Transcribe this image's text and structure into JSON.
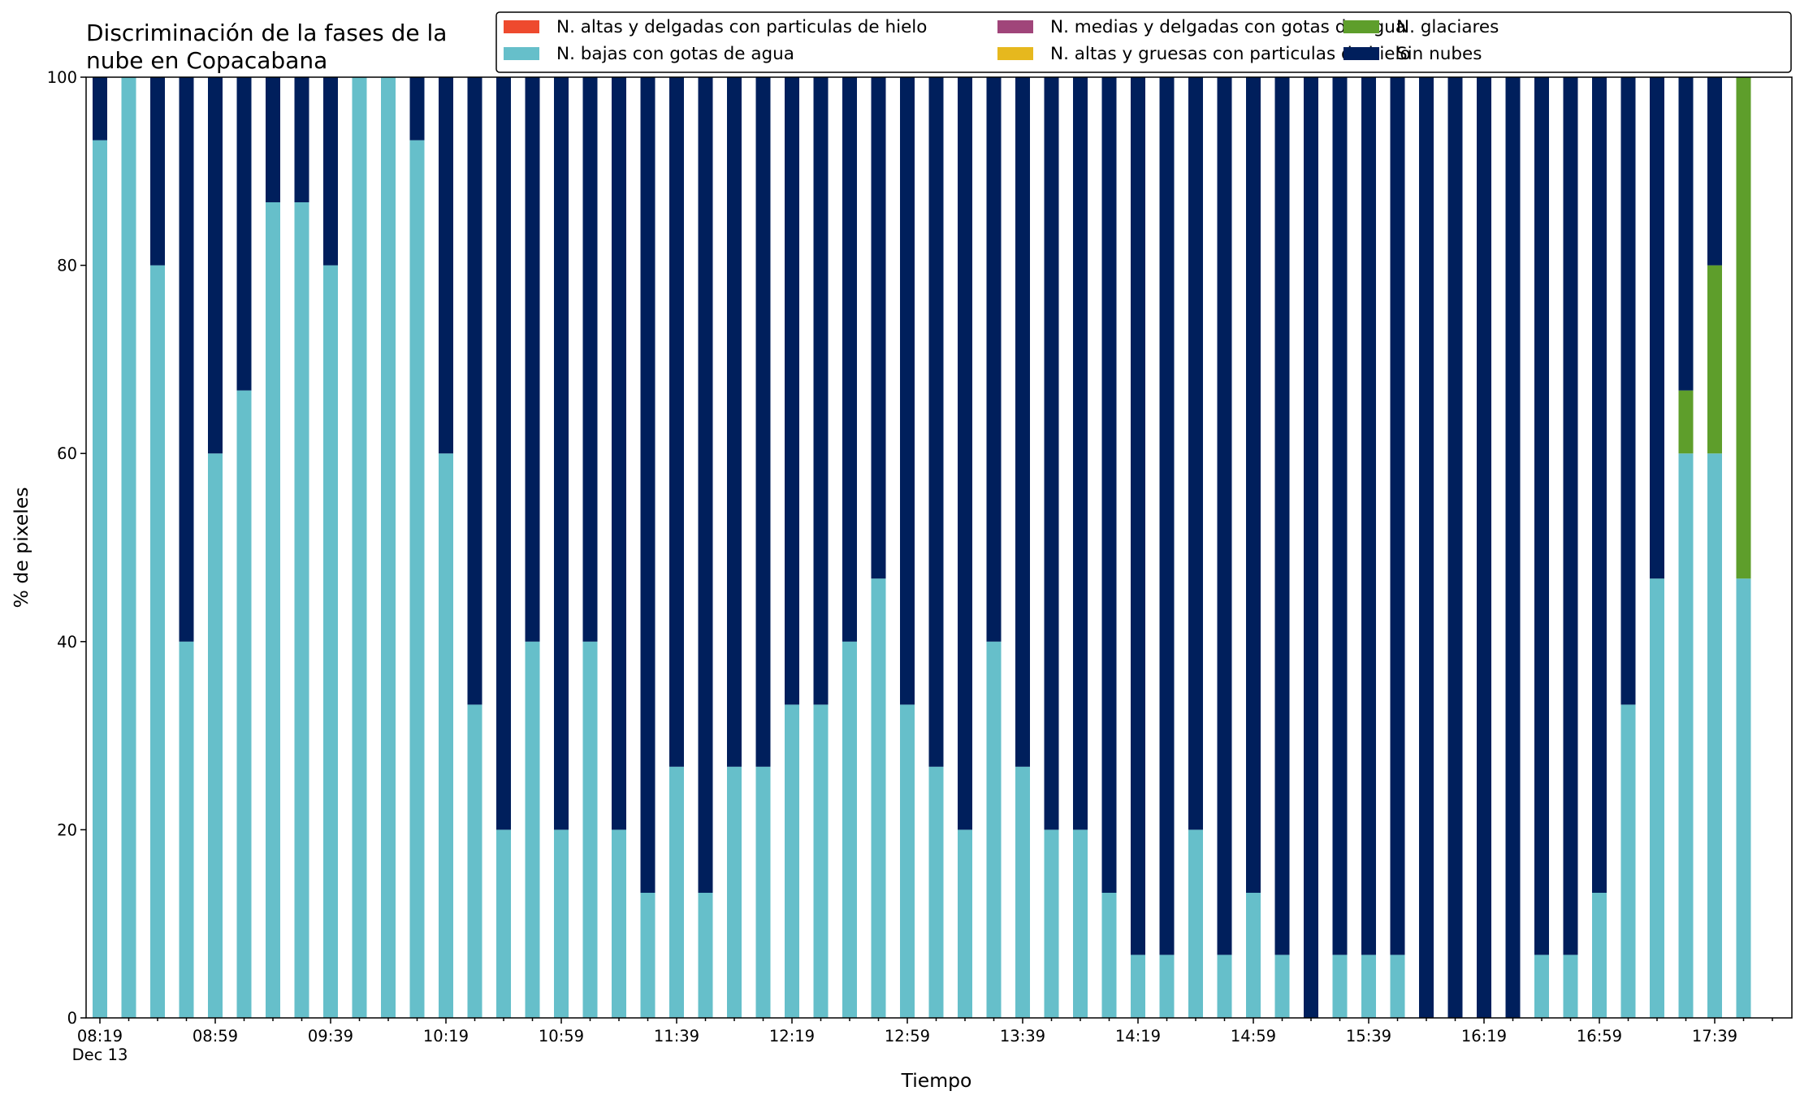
{
  "chart_data": {
    "type": "bar",
    "stacked": true,
    "title": [
      "Discriminación de la fases de la",
      "nube en Copacabana"
    ],
    "xlabel": "Tiempo",
    "ylabel": "% de pixeles",
    "ylim": [
      0,
      100
    ],
    "yticks": [
      0,
      20,
      40,
      60,
      80,
      100
    ],
    "date_label": "Dec 13",
    "grid": false,
    "legend_position": "upper-right",
    "categories": [
      "08:19",
      "08:29",
      "08:39",
      "08:49",
      "08:59",
      "09:09",
      "09:19",
      "09:29",
      "09:39",
      "09:49",
      "09:59",
      "10:09",
      "10:19",
      "10:29",
      "10:39",
      "10:49",
      "10:59",
      "11:09",
      "11:19",
      "11:29",
      "11:39",
      "11:49",
      "11:59",
      "12:09",
      "12:19",
      "12:29",
      "12:39",
      "12:49",
      "12:59",
      "13:09",
      "13:19",
      "13:29",
      "13:39",
      "13:49",
      "13:59",
      "14:09",
      "14:19",
      "14:29",
      "14:39",
      "14:49",
      "14:59",
      "15:09",
      "15:19",
      "15:29",
      "15:39",
      "15:49",
      "15:59",
      "16:09",
      "16:19",
      "16:29",
      "16:39",
      "16:49",
      "16:59",
      "17:09",
      "17:19",
      "17:29",
      "17:39",
      "17:49"
    ],
    "x_tick_labels": [
      "08:19",
      "08:59",
      "09:39",
      "10:19",
      "10:59",
      "11:39",
      "12:19",
      "12:59",
      "13:39",
      "14:19",
      "14:59",
      "15:39",
      "16:19",
      "16:59",
      "17:39"
    ],
    "series": [
      {
        "name": "N. altas y delgadas con particulas de hielo",
        "color": "#ee4a2e",
        "values": [
          0,
          0,
          0,
          0,
          0,
          0,
          0,
          0,
          0,
          0,
          0,
          0,
          0,
          0,
          0,
          0,
          0,
          0,
          0,
          0,
          0,
          0,
          0,
          0,
          0,
          0,
          0,
          0,
          0,
          0,
          0,
          0,
          0,
          0,
          0,
          0,
          0,
          0,
          0,
          0,
          0,
          0,
          0,
          0,
          0,
          0,
          0,
          0,
          0,
          0,
          0,
          0,
          0,
          0,
          0,
          0,
          0,
          0
        ]
      },
      {
        "name": "N. altas y gruesas con particulas de hielo",
        "color": "#e6b81e",
        "values": [
          0,
          0,
          0,
          0,
          0,
          0,
          0,
          0,
          0,
          0,
          0,
          0,
          0,
          0,
          0,
          0,
          0,
          0,
          0,
          0,
          0,
          0,
          0,
          0,
          0,
          0,
          0,
          0,
          0,
          0,
          0,
          0,
          0,
          0,
          0,
          0,
          0,
          0,
          0,
          0,
          0,
          0,
          0,
          0,
          0,
          0,
          0,
          0,
          0,
          0,
          0,
          0,
          0,
          0,
          0,
          0,
          0,
          0
        ]
      },
      {
        "name": "N. bajas con gotas de agua",
        "color": "#66bfca",
        "values": [
          93.3,
          100,
          80,
          40,
          60,
          66.7,
          86.7,
          86.7,
          80,
          100,
          100,
          93.3,
          60,
          33.3,
          20,
          40,
          20,
          40,
          20,
          13.3,
          26.7,
          13.3,
          26.7,
          26.7,
          33.3,
          33.3,
          40,
          46.7,
          33.3,
          26.7,
          20,
          40,
          26.7,
          20,
          20,
          13.3,
          6.7,
          6.7,
          20,
          6.7,
          13.3,
          6.7,
          0,
          6.7,
          6.7,
          6.7,
          0,
          0,
          0,
          0,
          6.7,
          6.7,
          13.3,
          33.3,
          46.7,
          60,
          60,
          46.7
        ]
      },
      {
        "name": "N. glaciares",
        "color": "#5e9e2b",
        "values": [
          0,
          0,
          0,
          0,
          0,
          0,
          0,
          0,
          0,
          0,
          0,
          0,
          0,
          0,
          0,
          0,
          0,
          0,
          0,
          0,
          0,
          0,
          0,
          0,
          0,
          0,
          0,
          0,
          0,
          0,
          0,
          0,
          0,
          0,
          0,
          0,
          0,
          0,
          0,
          0,
          0,
          0,
          0,
          0,
          0,
          0,
          0,
          0,
          0,
          0,
          0,
          0,
          0,
          0,
          0,
          6.7,
          20,
          53.3
        ]
      },
      {
        "name": "N. medias y delgadas con gotas de agua",
        "color": "#a0457a",
        "values": [
          0,
          0,
          0,
          0,
          0,
          0,
          0,
          0,
          0,
          0,
          0,
          0,
          0,
          0,
          0,
          0,
          0,
          0,
          0,
          0,
          0,
          0,
          0,
          0,
          0,
          0,
          0,
          0,
          0,
          0,
          0,
          0,
          0,
          0,
          0,
          0,
          0,
          0,
          0,
          0,
          0,
          0,
          0,
          0,
          0,
          0,
          0,
          0,
          0,
          0,
          0,
          0,
          0,
          0,
          0,
          0,
          0,
          0
        ]
      },
      {
        "name": "Sin nubes",
        "color": "#001f5c",
        "values": [
          6.7,
          0,
          20,
          60,
          40,
          33.3,
          13.3,
          13.3,
          20,
          0,
          0,
          6.7,
          40,
          66.7,
          80,
          60,
          80,
          60,
          80,
          86.7,
          73.3,
          86.7,
          73.3,
          73.3,
          66.7,
          66.7,
          60,
          53.3,
          66.7,
          73.3,
          80,
          60,
          73.3,
          80,
          80,
          86.7,
          93.3,
          93.3,
          80,
          93.3,
          86.7,
          93.3,
          100,
          93.3,
          93.3,
          93.3,
          100,
          100,
          100,
          100,
          93.3,
          93.3,
          86.7,
          66.7,
          53.3,
          33.3,
          20,
          0
        ]
      }
    ],
    "legend_order": [
      "N. altas y delgadas con particulas de hielo",
      "N. bajas con gotas de agua",
      "N. medias y delgadas con gotas de agua",
      "N. altas y gruesas con particulas de hielo",
      "N. glaciares",
      "Sin nubes"
    ]
  }
}
